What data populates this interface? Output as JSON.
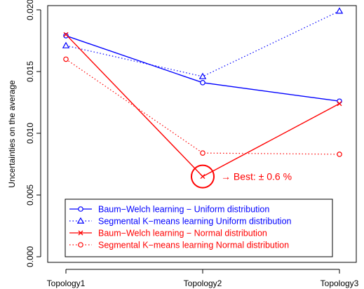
{
  "chart_data": {
    "type": "line",
    "title": "",
    "xlabel": "",
    "ylabel": "Uncertainties on the average",
    "categories": [
      "Topology1",
      "Topology2",
      "Topology3"
    ],
    "ylim": [
      0,
      0.02
    ],
    "yticks": [
      "0.000",
      "0.005",
      "0.010",
      "0.015",
      "0.020"
    ],
    "grid": false,
    "legend_position": "bottom-left",
    "series": [
      {
        "name": "Baum−Welch learning − Uniform distribution",
        "values": [
          0.0179,
          0.0141,
          0.0126
        ],
        "color": "#0000ff",
        "line": "solid",
        "marker": "circle"
      },
      {
        "name": "Segmental K−means learning Uniform distribution",
        "values": [
          0.0171,
          0.0146,
          0.0199
        ],
        "color": "#0000ff",
        "line": "dotted",
        "marker": "triangle"
      },
      {
        "name": "Baum−Welch learning − Normal distribution",
        "values": [
          0.018,
          0.0065,
          0.0124
        ],
        "color": "#ff0000",
        "line": "solid",
        "marker": "cross"
      },
      {
        "name": "Segmental K−means learning Normal distribution",
        "values": [
          0.016,
          0.0084,
          0.0083
        ],
        "color": "#ff0000",
        "line": "dotted",
        "marker": "circle"
      }
    ],
    "annotation": {
      "text": "→ Best: ± 0.6 %",
      "category_index": 1,
      "value": 0.0065,
      "color": "#ff0000"
    }
  }
}
